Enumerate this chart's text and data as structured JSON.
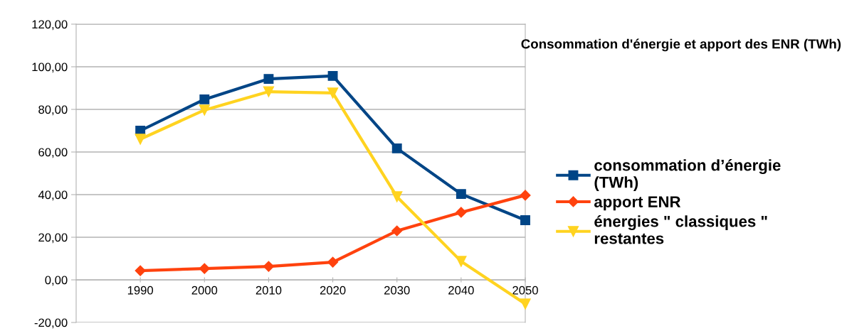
{
  "chart_data": {
    "type": "line",
    "title": "Consommation d'énergie et apport des ENR (TWh)",
    "x": [
      1990,
      2000,
      2010,
      2020,
      2030,
      2040,
      2050
    ],
    "series": [
      {
        "name": "consommation d’énergie\n(TWh)",
        "color": "#004586",
        "marker": "square",
        "values": [
          70,
          84.7,
          94.3,
          95.7,
          61.7,
          40.3,
          28
        ]
      },
      {
        "name": "apport ENR",
        "color": "#ff420e",
        "marker": "diamond",
        "values": [
          4.3,
          5.3,
          6.3,
          8.3,
          23,
          31.7,
          39.7
        ]
      },
      {
        "name": "énergies \" classiques \"\nrestantes",
        "color": "#ffd320",
        "marker": "triangle",
        "values": [
          66,
          79.7,
          88.3,
          87.7,
          39,
          8.7,
          -11.3
        ]
      }
    ],
    "xlim": [
      1980,
      2050
    ],
    "xticks": [
      1990,
      2000,
      2010,
      2020,
      2030,
      2040,
      2050
    ],
    "ylim": [
      -20,
      120
    ],
    "yticks": [
      {
        "value": -20,
        "label": "-20,00"
      },
      {
        "value": 0,
        "label": "0,00"
      },
      {
        "value": 20,
        "label": "20,00"
      },
      {
        "value": 40,
        "label": "40,00"
      },
      {
        "value": 60,
        "label": "60,00"
      },
      {
        "value": 80,
        "label": "80,00"
      },
      {
        "value": 100,
        "label": "100,00"
      },
      {
        "value": 120,
        "label": "120,00"
      }
    ],
    "grid": "y",
    "legend": "right",
    "line_style": "solid"
  }
}
